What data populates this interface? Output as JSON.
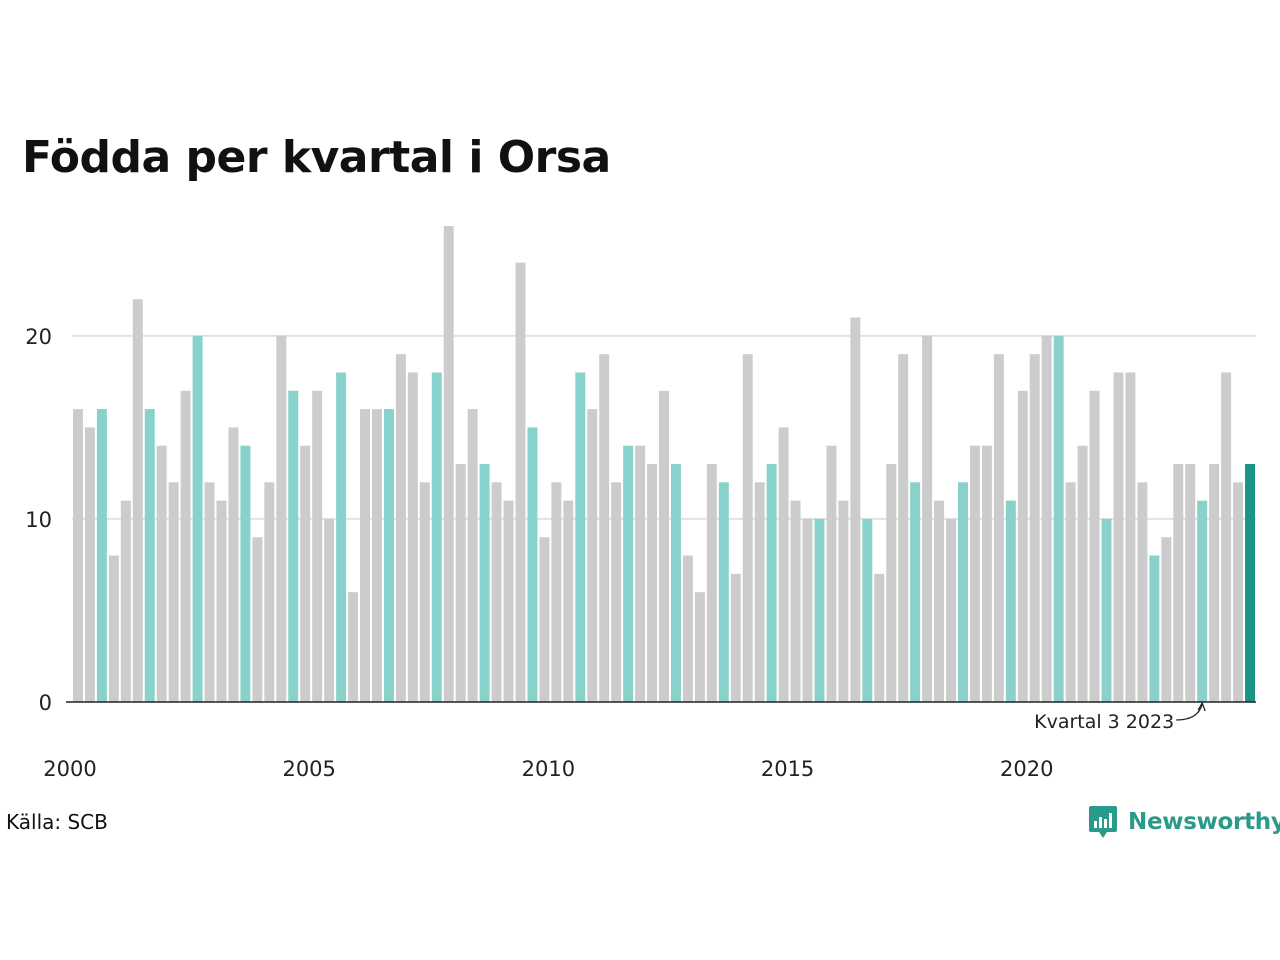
{
  "title": "Födda per kvartal i Orsa",
  "source": "Källa: SCB",
  "brand": "Newsworthy",
  "colors": {
    "bar_default": "#cccccc",
    "bar_highlight": "#88d2cb",
    "bar_latest": "#1a9485",
    "grid": "#e2e2e2",
    "axis": "#222222",
    "brand": "#2a9a8a"
  },
  "chart_data": {
    "type": "bar",
    "title": "Födda per kvartal i Orsa",
    "ylim": [
      0,
      26
    ],
    "yticks": [
      0,
      10,
      20
    ],
    "xticks": [
      "2000",
      "2005",
      "2010",
      "2015",
      "2020"
    ],
    "grid": true,
    "start_year": 2000,
    "highlight_quarter": 3,
    "annotation": {
      "label": "Kvartal 3 2023"
    },
    "values": [
      16,
      15,
      16,
      8,
      11,
      22,
      16,
      14,
      12,
      17,
      20,
      12,
      11,
      15,
      14,
      9,
      12,
      20,
      17,
      14,
      17,
      10,
      18,
      6,
      16,
      16,
      16,
      19,
      18,
      12,
      18,
      26,
      13,
      16,
      13,
      12,
      11,
      24,
      15,
      9,
      12,
      11,
      18,
      16,
      19,
      12,
      14,
      14,
      13,
      17,
      13,
      8,
      6,
      13,
      12,
      7,
      19,
      12,
      13,
      15,
      11,
      10,
      10,
      14,
      11,
      21,
      10,
      7,
      13,
      19,
      12,
      20,
      11,
      10,
      12,
      14,
      14,
      19,
      11,
      17,
      19,
      20,
      20,
      12,
      14,
      17,
      10,
      18,
      18,
      12,
      8,
      9,
      13,
      13,
      11,
      13,
      18,
      12,
      13
    ]
  }
}
